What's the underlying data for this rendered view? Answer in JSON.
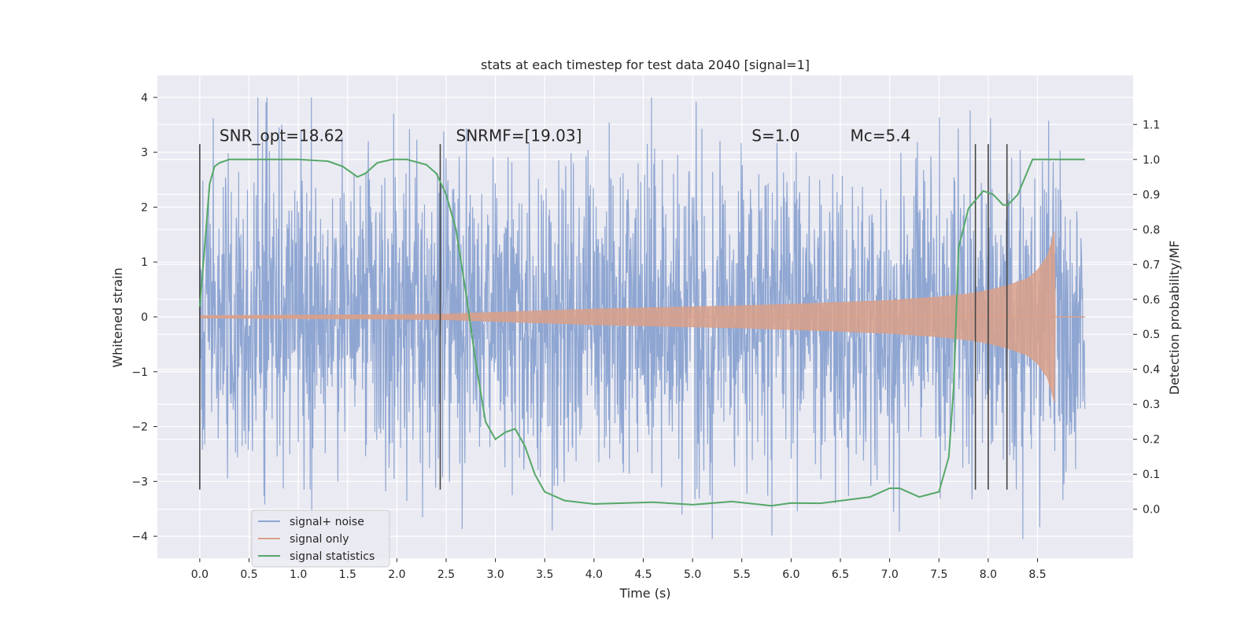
{
  "chart_data": {
    "type": "line",
    "title": "stats at each timestep for test data 2040 [signal=1]",
    "xlabel": "Time (s)",
    "ylabel": "Whitened strain",
    "y2label": "Detection probability/MF",
    "xlim": [
      -0.43,
      9.47
    ],
    "ylim": [
      -4.4,
      4.4
    ],
    "y2lim": [
      -0.14,
      1.24
    ],
    "x_ticks": [
      0.0,
      0.5,
      1.0,
      1.5,
      2.0,
      2.5,
      3.0,
      3.5,
      4.0,
      4.5,
      5.0,
      5.5,
      6.0,
      6.5,
      7.0,
      7.5,
      8.0,
      8.5
    ],
    "y_ticks": [
      -4,
      -3,
      -2,
      -1,
      0,
      1,
      2,
      3,
      4
    ],
    "y2_ticks": [
      0.0,
      0.1,
      0.2,
      0.3,
      0.4,
      0.5,
      0.6,
      0.7,
      0.8,
      0.9,
      1.0,
      1.1
    ],
    "x_tick_labels": [
      "0.0",
      "0.5",
      "1.0",
      "1.5",
      "2.0",
      "2.5",
      "3.0",
      "3.5",
      "4.0",
      "4.5",
      "5.0",
      "5.5",
      "6.0",
      "6.5",
      "7.0",
      "7.5",
      "8.0",
      "8.5"
    ],
    "y_tick_labels": [
      "−4",
      "−3",
      "−2",
      "−1",
      "0",
      "1",
      "2",
      "3",
      "4"
    ],
    "y2_tick_labels": [
      "0.0",
      "0.1",
      "0.2",
      "0.3",
      "0.4",
      "0.5",
      "0.6",
      "0.7",
      "0.8",
      "0.9",
      "1.0",
      "1.1"
    ],
    "grid": true,
    "legend_position": "lower-left",
    "colors": {
      "background": "#eaeaf2",
      "noise": "#8fa6d2",
      "signal": "#d9a08a",
      "stats": "#55a868",
      "marker": "#444444"
    },
    "annotations": [
      {
        "text": "SNR_opt=18.62",
        "x": 0.2,
        "y": 3.2
      },
      {
        "text": "SNRMF=[19.03]",
        "x": 2.6,
        "y": 3.2
      },
      {
        "text": "S=1.0",
        "x": 5.6,
        "y": 3.2
      },
      {
        "text": "Mc=5.4",
        "x": 6.6,
        "y": 3.2
      }
    ],
    "marker_lines": {
      "x": [
        0.0,
        2.44,
        7.87,
        8.0,
        8.19
      ],
      "ymin": -3.15,
      "ymax": 3.15
    },
    "series": [
      {
        "name": "signal+ noise",
        "description": "whitened strain, noise envelope",
        "x_range": [
          0.0,
          8.98
        ],
        "typical_amplitude": 1.7,
        "max_value": 4.0,
        "min_value": -4.05
      },
      {
        "name": "signal only",
        "description": "chirp envelope (symmetric about 0)",
        "x": [
          0.0,
          1.0,
          2.0,
          2.5,
          3.0,
          3.5,
          4.0,
          4.5,
          5.0,
          5.5,
          6.0,
          6.5,
          7.0,
          7.5,
          7.8,
          8.0,
          8.2,
          8.4,
          8.5,
          8.6,
          8.65,
          8.67,
          8.68
        ],
        "envelope": [
          0.02,
          0.03,
          0.04,
          0.05,
          0.08,
          0.11,
          0.14,
          0.16,
          0.18,
          0.2,
          0.23,
          0.26,
          0.3,
          0.36,
          0.42,
          0.48,
          0.57,
          0.7,
          0.85,
          1.1,
          1.4,
          1.55,
          0.02
        ]
      },
      {
        "name": "signal statistics",
        "x": [
          0.0,
          0.05,
          0.1,
          0.15,
          0.2,
          0.3,
          0.5,
          1.0,
          1.3,
          1.45,
          1.6,
          1.68,
          1.8,
          1.95,
          2.1,
          2.3,
          2.4,
          2.5,
          2.6,
          2.7,
          2.8,
          2.9,
          3.0,
          3.1,
          3.2,
          3.3,
          3.4,
          3.5,
          3.7,
          4.0,
          4.6,
          5.0,
          5.4,
          5.8,
          6.0,
          6.3,
          6.8,
          7.0,
          7.1,
          7.3,
          7.5,
          7.6,
          7.65,
          7.7,
          7.8,
          7.95,
          8.05,
          8.15,
          8.2,
          8.3,
          8.45,
          8.7,
          8.98
        ],
        "y": [
          0.58,
          0.75,
          0.93,
          0.98,
          0.99,
          1.0,
          1.0,
          1.0,
          0.995,
          0.98,
          0.95,
          0.96,
          0.99,
          1.0,
          1.0,
          0.985,
          0.96,
          0.9,
          0.8,
          0.62,
          0.42,
          0.25,
          0.2,
          0.22,
          0.23,
          0.18,
          0.1,
          0.05,
          0.025,
          0.015,
          0.02,
          0.013,
          0.022,
          0.01,
          0.018,
          0.017,
          0.035,
          0.06,
          0.06,
          0.035,
          0.05,
          0.15,
          0.35,
          0.75,
          0.86,
          0.91,
          0.9,
          0.87,
          0.87,
          0.9,
          1.0,
          1.0,
          1.0
        ]
      }
    ]
  }
}
